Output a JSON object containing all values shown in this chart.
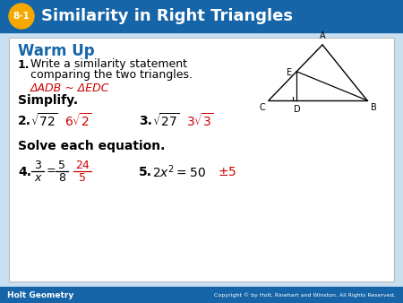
{
  "title": "Similarity in Right Triangles",
  "lesson_num": "8-1",
  "header_bg": "#1565a8",
  "header_text_color": "#ffffff",
  "badge_bg": "#f5a800",
  "badge_text_color": "#ffffff",
  "footer_bg": "#1565a8",
  "footer_left": "Holt Geometry",
  "footer_right": "Copyright © by Holt, Rinehart and Winston. All Rights Reserved.",
  "content_bg": "#ffffff",
  "warm_up_color": "#1565a8",
  "answer_color": "#cc0000",
  "black_color": "#000000",
  "body_bg": "#c8dff0"
}
